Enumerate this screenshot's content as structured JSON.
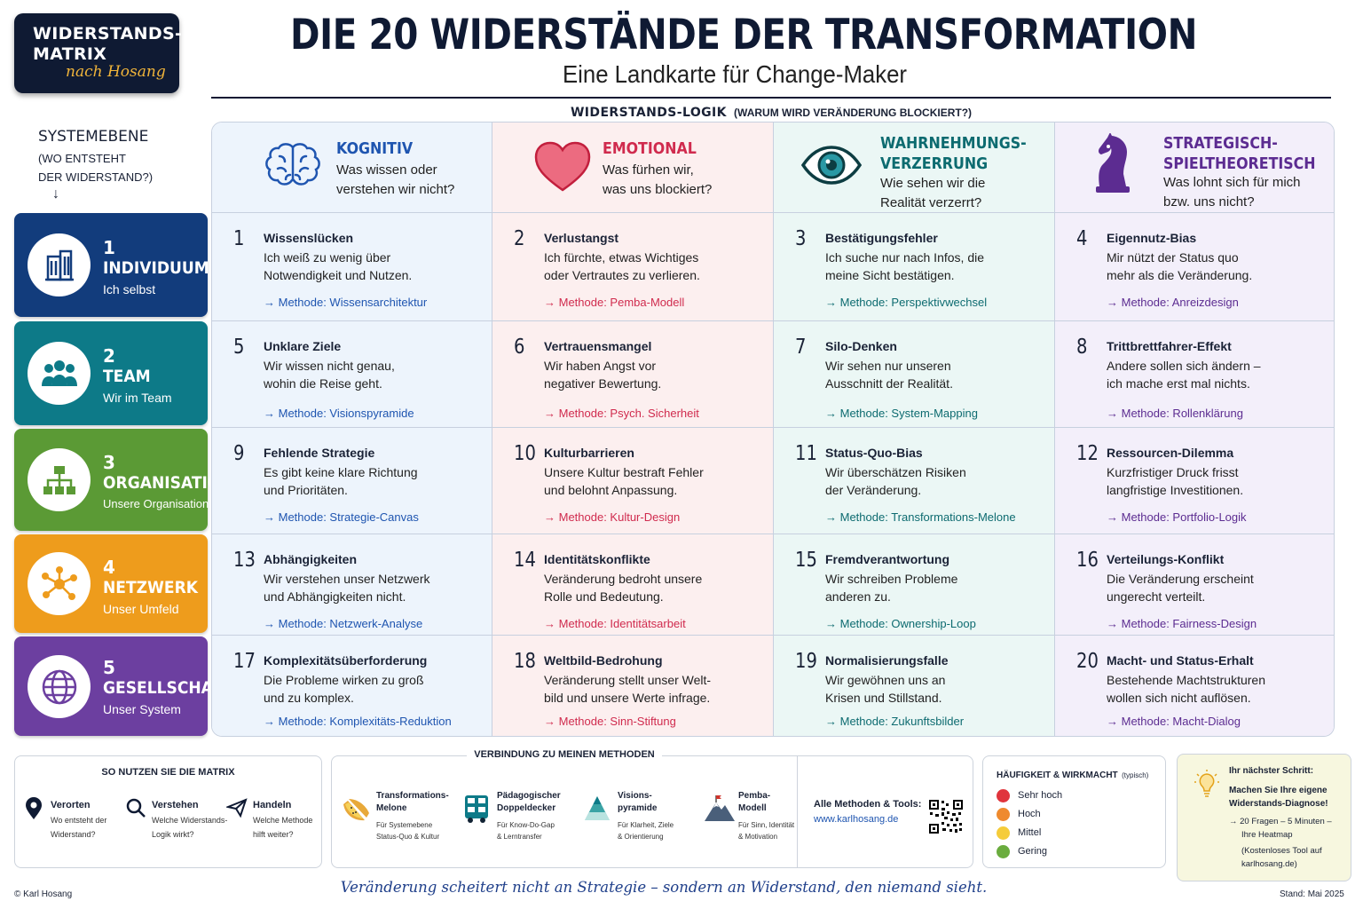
{
  "logo": {
    "line1": "WIDERSTANDS-",
    "line2": "MATRIX",
    "line3": "nach Hosang"
  },
  "title": "DIE 20 WIDERSTÄNDE DER TRANSFORMATION",
  "subtitle": "Eine Landkarte für Change-Maker",
  "logic": {
    "label": "WIDERSTANDS-LOGIK",
    "question": "(WARUM WIRD VERÄNDERUNG BLOCKIERT?)"
  },
  "system": {
    "label": "SYSTEMEBENE",
    "q1": "(WO ENTSTEHT",
    "q2": "DER WIDERSTAND?)",
    "arrow": "↓"
  },
  "levels": [
    {
      "num": "1",
      "name": "INDIVIDUUM",
      "sub": "Ich selbst",
      "color": "#123c7c",
      "icon": "building-icon"
    },
    {
      "num": "2",
      "name": "TEAM",
      "sub": "Wir im Team",
      "color": "#0d7a88",
      "icon": "team-icon"
    },
    {
      "num": "3",
      "name": "ORGANISATION",
      "sub": "Unsere Organisation",
      "color": "#5b9a35",
      "icon": "org-chart-icon"
    },
    {
      "num": "4",
      "name": "NETZWERK",
      "sub": "Unser Umfeld",
      "color": "#ee9c1c",
      "icon": "network-icon"
    },
    {
      "num": "5",
      "name": "GESELLSCHAFT",
      "sub": "Unser System",
      "color": "#6c3fa0",
      "icon": "globe-icon"
    }
  ],
  "columns": [
    {
      "title1": "KOGNITIV",
      "title2": "",
      "q1": "Was wissen oder",
      "q2": "verstehen wir nicht?",
      "color": "#1f55b0",
      "icon": "brain-icon"
    },
    {
      "title1": "EMOTIONAL",
      "title2": "",
      "q1": "Was fürhen wir,",
      "q2": "was uns blockiert?",
      "color": "#d02b4e",
      "icon": "heart-icon"
    },
    {
      "title1": "WAHRNEHMUNGS-",
      "title2": "VERZERRUNG",
      "q1": "Wie sehen wir die",
      "q2": "Realität verzerrt?",
      "color": "#0d6b70",
      "icon": "eye-icon"
    },
    {
      "title1": "STRATEGISCH-",
      "title2": "SPIELTHEORETISCH",
      "q1": "Was lohnt sich für mich",
      "q2": "bzw. uns nicht?",
      "color": "#5c2c91",
      "icon": "chess-knight-icon"
    }
  ],
  "cells": [
    [
      {
        "n": "1",
        "t": "Wissenslücken",
        "d1": "Ich weiß zu wenig über",
        "d2": "Notwendigkeit und Nutzen.",
        "m": "→ Methode: Wissensarchitektur"
      },
      {
        "n": "2",
        "t": "Verlustangst",
        "d1": "Ich fürchte, etwas Wichtiges",
        "d2": "oder Vertrautes zu verlieren.",
        "m": "→ Methode: Pemba-Modell"
      },
      {
        "n": "3",
        "t": "Bestätigungsfehler",
        "d1": "Ich suche nur nach Infos, die",
        "d2": "meine Sicht bestätigen.",
        "m": "→ Methode: Perspektivwechsel"
      },
      {
        "n": "4",
        "t": "Eigennutz-Bias",
        "d1": "Mir nützt der Status quo",
        "d2": "mehr als die Veränderung.",
        "m": "→ Methode: Anreizdesign"
      }
    ],
    [
      {
        "n": "5",
        "t": "Unklare Ziele",
        "d1": "Wir wissen nicht genau,",
        "d2": "wohin die Reise geht.",
        "m": "→ Methode: Visionspyramide"
      },
      {
        "n": "6",
        "t": "Vertrauensmangel",
        "d1": "Wir haben Angst vor",
        "d2": "negativer Bewertung.",
        "m": "→ Methode: Psych. Sicherheit"
      },
      {
        "n": "7",
        "t": "Silo-Denken",
        "d1": "Wir sehen nur unseren",
        "d2": "Ausschnitt der Realität.",
        "m": "→ Methode: System-Mapping"
      },
      {
        "n": "8",
        "t": "Trittbrettfahrer-Effekt",
        "d1": "Andere sollen sich ändern –",
        "d2": "ich mache erst mal nichts.",
        "m": "→ Methode: Rollenklärung"
      }
    ],
    [
      {
        "n": "9",
        "t": "Fehlende Strategie",
        "d1": "Es gibt keine klare Richtung",
        "d2": "und Prioritäten.",
        "m": "→ Methode: Strategie-Canvas"
      },
      {
        "n": "10",
        "t": "Kulturbarrieren",
        "d1": "Unsere Kultur bestraft Fehler",
        "d2": "und belohnt Anpassung.",
        "m": "→ Methode: Kultur-Design"
      },
      {
        "n": "11",
        "t": "Status-Quo-Bias",
        "d1": "Wir überschätzen Risiken",
        "d2": "der Veränderung.",
        "m": "→ Methode: Transformations-Melone"
      },
      {
        "n": "12",
        "t": "Ressourcen-Dilemma",
        "d1": "Kurzfristiger Druck frisst",
        "d2": "langfristige Investitionen.",
        "m": "→ Methode: Portfolio-Logik"
      }
    ],
    [
      {
        "n": "13",
        "t": "Abhängigkeiten",
        "d1": "Wir verstehen unser Netzwerk",
        "d2": "und Abhängigkeiten nicht.",
        "m": "→ Methode: Netzwerk-Analyse"
      },
      {
        "n": "14",
        "t": "Identitätskonflikte",
        "d1": "Veränderung bedroht unsere",
        "d2": "Rolle und Bedeutung.",
        "m": "→ Methode: Identitätsarbeit"
      },
      {
        "n": "15",
        "t": "Fremdverantwortung",
        "d1": "Wir schreiben Probleme",
        "d2": "anderen zu.",
        "m": "→ Methode: Ownership-Loop"
      },
      {
        "n": "16",
        "t": "Verteilungs-Konflikt",
        "d1": "Die Veränderung erscheint",
        "d2": "ungerecht verteilt.",
        "m": "→ Methode: Fairness-Design"
      }
    ],
    [
      {
        "n": "17",
        "t": "Komplexitätsüberforderung",
        "d1": "Die Probleme wirken zu groß",
        "d2": "und zu komplex.",
        "m": "→ Methode: Komplexitäts-Reduktion"
      },
      {
        "n": "18",
        "t": "Weltbild-Bedrohung",
        "d1": "Veränderung stellt unser Welt-",
        "d2": "bild und unsere Werte infrage.",
        "m": "→ Methode: Sinn-Stiftung"
      },
      {
        "n": "19",
        "t": "Normalisierungsfalle",
        "d1": "Wir gewöhnen uns an",
        "d2": "Krisen und Stillstand.",
        "m": "→ Methode: Zukunftsbilder"
      },
      {
        "n": "20",
        "t": "Macht- und Status-Erhalt",
        "d1": "Bestehende Machtstrukturen",
        "d2": "wollen sich nicht auflösen.",
        "m": "→ Methode: Macht-Dialog"
      }
    ]
  ],
  "usage": {
    "title": "SO NUTZEN SIE DIE MATRIX",
    "items": [
      {
        "t": "Verorten",
        "d1": "Wo entsteht der",
        "d2": "Widerstand?",
        "icon": "location-pin-icon"
      },
      {
        "t": "Verstehen",
        "d1": "Welche Widerstands-",
        "d2": "Logik wirkt?",
        "icon": "magnifier-icon"
      },
      {
        "t": "Handeln",
        "d1": "Welche Methode",
        "d2": "hilft weiter?",
        "icon": "paper-plane-icon"
      }
    ]
  },
  "methods": {
    "title": "VERBINDUNG ZU MEINEN METHODEN",
    "items": [
      {
        "t1": "Transformations-",
        "t2": "Melone",
        "d1": "Für Systemebene",
        "d2": "Status-Quo & Kultur",
        "icon": "melon-icon"
      },
      {
        "t1": "Pädagogischer",
        "t2": "Doppeldecker",
        "d1": "Für Know-Do-Gap",
        "d2": "& Lerntransfer",
        "icon": "bus-icon"
      },
      {
        "t1": "Visions-",
        "t2": "pyramide",
        "d1": "Für Klarheit, Ziele",
        "d2": "& Orientierung",
        "icon": "pyramid-icon"
      },
      {
        "t1": "Pemba-",
        "t2": "Modell",
        "d1": "Für Sinn, Identität",
        "d2": "& Motivation",
        "icon": "mountain-icon"
      }
    ],
    "all": "Alle Methoden & Tools:",
    "url": "www.karlhosang.de"
  },
  "frequency": {
    "title": "HÄUFIGKEIT & WIRKMACHT",
    "note": "(typisch)",
    "items": [
      {
        "label": "Sehr hoch",
        "color": "#e0343c"
      },
      {
        "label": "Hoch",
        "color": "#ef8a2e"
      },
      {
        "label": "Mittel",
        "color": "#f5cc3a"
      },
      {
        "label": "Gering",
        "color": "#6aac3e"
      }
    ]
  },
  "next": {
    "title": "Ihr nächster Schritt:",
    "l1": "Machen Sie Ihre eigene",
    "l2": "Widerstands-Diagnose!",
    "l3": "→ 20 Fragen – 5 Minuten –",
    "l4": "Ihre Heatmap",
    "l5": "(Kostenloses Tool auf",
    "l6": "karlhosang.de)"
  },
  "footer": {
    "copy": "© Karl Hosang",
    "quote": "Veränderung scheitert nicht an Strategie – sondern an Widerstand, den niemand sieht.",
    "date": "Stand: Mai 2025"
  }
}
